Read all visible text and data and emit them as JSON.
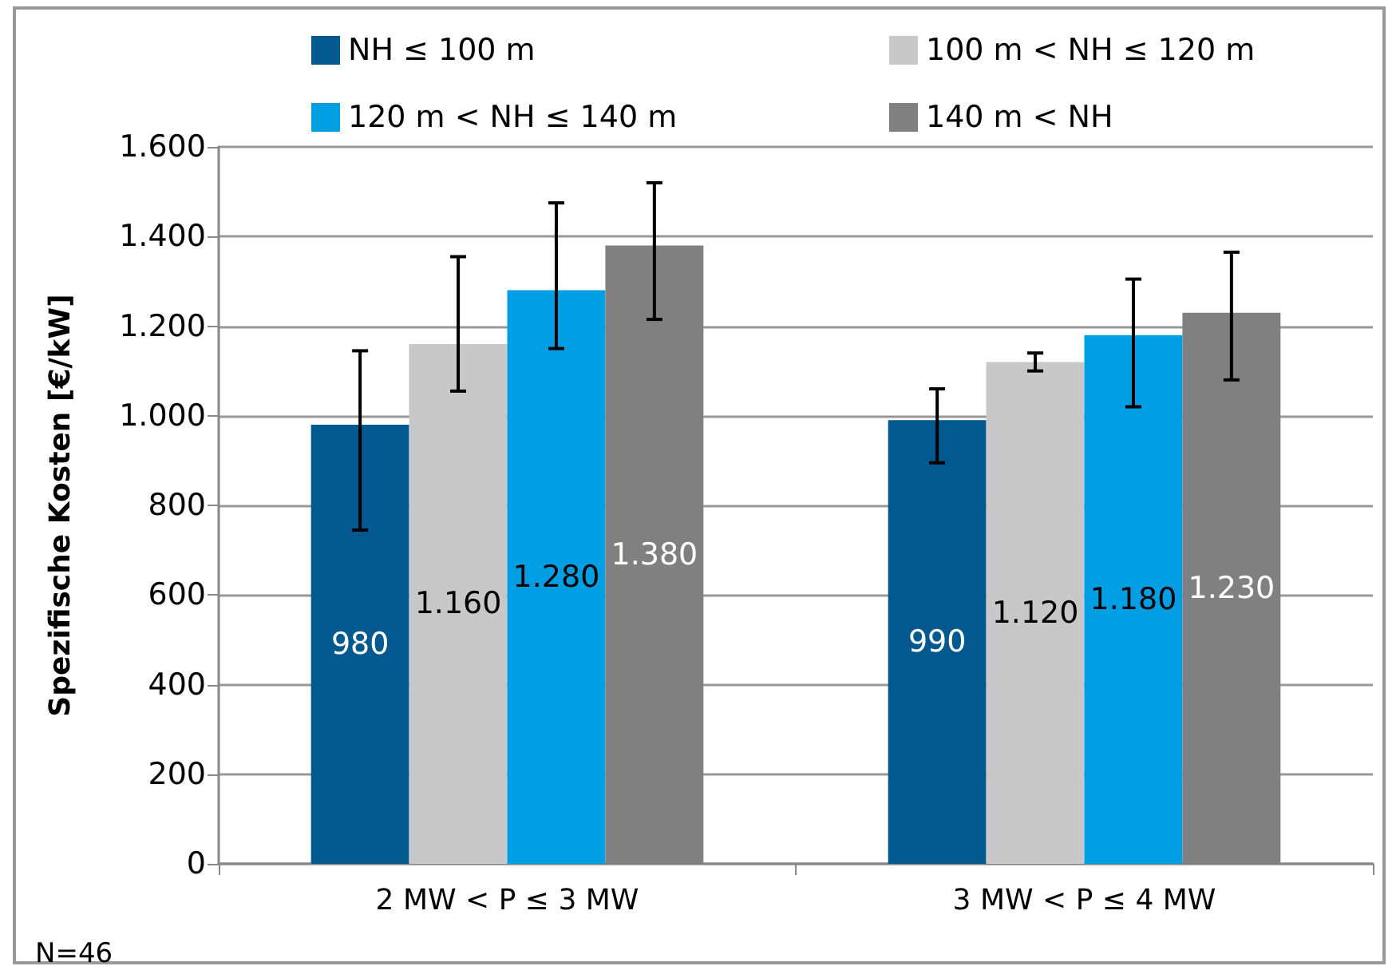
{
  "chart_data": {
    "type": "bar",
    "ylabel": "Spezifische Kosten [€/kW]",
    "categories": [
      "2 MW < P ≤ 3 MW",
      "3 MW < P ≤ 4 MW"
    ],
    "series": [
      {
        "name": "NH ≤ 100 m",
        "color": "#02598f",
        "values": [
          980,
          990
        ],
        "value_labels": [
          "980",
          "990"
        ],
        "errors": [
          [
            745,
            1145
          ],
          [
            895,
            1060
          ]
        ]
      },
      {
        "name": "100 m < NH ≤ 120 m",
        "color": "#c8c8c8",
        "values": [
          1160,
          1120
        ],
        "value_labels": [
          "1.160",
          "1.120"
        ],
        "errors": [
          [
            1055,
            1355
          ],
          [
            1100,
            1140
          ]
        ]
      },
      {
        "name": "120 m < NH ≤ 140 m",
        "color": "#009fe3",
        "values": [
          1280,
          1180
        ],
        "value_labels": [
          "1.280",
          "1.180"
        ],
        "errors": [
          [
            1150,
            1475
          ],
          [
            1020,
            1305
          ]
        ]
      },
      {
        "name": "140 m < NH",
        "color": "#808080",
        "values": [
          1380,
          1230
        ],
        "value_labels": [
          "1.380",
          "1.230"
        ],
        "errors": [
          [
            1215,
            1520
          ],
          [
            1080,
            1365
          ]
        ]
      }
    ],
    "ylim": [
      0,
      1600
    ],
    "yticks": [
      {
        "value": 0,
        "label": "0"
      },
      {
        "value": 200,
        "label": "200"
      },
      {
        "value": 400,
        "label": "400"
      },
      {
        "value": 600,
        "label": "600"
      },
      {
        "value": 800,
        "label": "800"
      },
      {
        "value": 1000,
        "label": "1.000"
      },
      {
        "value": 1200,
        "label": "1.200"
      },
      {
        "value": 1400,
        "label": "1.400"
      },
      {
        "value": 1600,
        "label": "1.600"
      }
    ],
    "grid": "y",
    "legend": "top",
    "annotations": [
      "N=46"
    ]
  }
}
